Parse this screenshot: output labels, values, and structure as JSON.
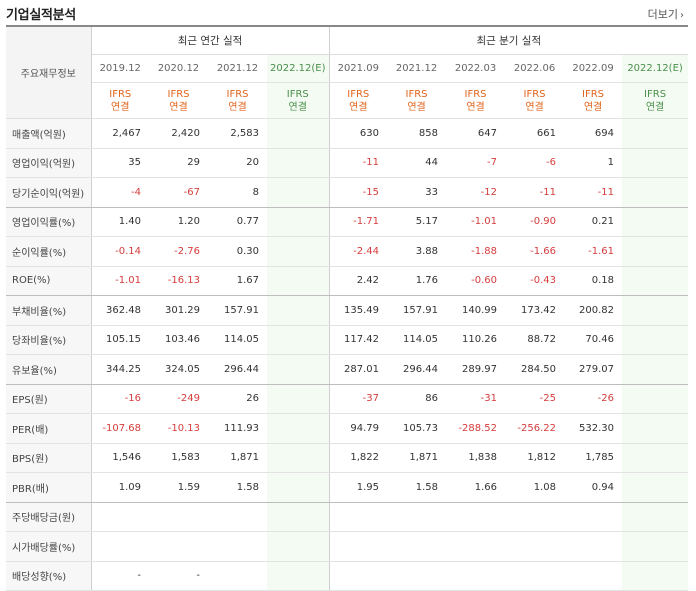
{
  "section_title": "기업실적분석",
  "more_label": "더보기",
  "more_icon": "chevron-right",
  "header": {
    "corner_label": "주요재무정보",
    "annual_label": "최근 연간 실적",
    "quarter_label": "최근 분기 실적",
    "annual_periods": [
      "2019.12",
      "2020.12",
      "2021.12",
      "2022.12(E)"
    ],
    "quarter_periods": [
      "2021.09",
      "2021.12",
      "2022.03",
      "2022.06",
      "2022.09",
      "2022.12(E)"
    ],
    "basis_top": "IFRS",
    "basis_bottom": "연결"
  },
  "colors": {
    "negative": "#d53c3c",
    "basis": "#e0631a",
    "estimate_bg": "#f3fbf3",
    "estimate_text": "#4a8f4a"
  },
  "rows": [
    {
      "label": "매출액(억원)",
      "annual": [
        "2,467",
        "2,420",
        "2,583",
        ""
      ],
      "quarter": [
        "630",
        "858",
        "647",
        "661",
        "694",
        ""
      ]
    },
    {
      "label": "영업이익(억원)",
      "annual": [
        "35",
        "29",
        "20",
        ""
      ],
      "quarter": [
        "-11",
        "44",
        "-7",
        "-6",
        "1",
        ""
      ]
    },
    {
      "label": "당기순이익(억원)",
      "annual": [
        "-4",
        "-67",
        "8",
        ""
      ],
      "quarter": [
        "-15",
        "33",
        "-12",
        "-11",
        "-11",
        ""
      ]
    },
    {
      "label": "영업이익률(%)",
      "annual": [
        "1.40",
        "1.20",
        "0.77",
        ""
      ],
      "quarter": [
        "-1.71",
        "5.17",
        "-1.01",
        "-0.90",
        "0.21",
        ""
      ]
    },
    {
      "label": "순이익률(%)",
      "annual": [
        "-0.14",
        "-2.76",
        "0.30",
        ""
      ],
      "quarter": [
        "-2.44",
        "3.88",
        "-1.88",
        "-1.66",
        "-1.61",
        ""
      ]
    },
    {
      "label": "ROE(%)",
      "annual": [
        "-1.01",
        "-16.13",
        "1.67",
        ""
      ],
      "quarter": [
        "2.42",
        "1.76",
        "-0.60",
        "-0.43",
        "0.18",
        ""
      ]
    },
    {
      "label": "부채비율(%)",
      "annual": [
        "362.48",
        "301.29",
        "157.91",
        ""
      ],
      "quarter": [
        "135.49",
        "157.91",
        "140.99",
        "173.42",
        "200.82",
        ""
      ]
    },
    {
      "label": "당좌비율(%)",
      "annual": [
        "105.15",
        "103.46",
        "114.05",
        ""
      ],
      "quarter": [
        "117.42",
        "114.05",
        "110.26",
        "88.72",
        "70.46",
        ""
      ]
    },
    {
      "label": "유보율(%)",
      "annual": [
        "344.25",
        "324.05",
        "296.44",
        ""
      ],
      "quarter": [
        "287.01",
        "296.44",
        "289.97",
        "284.50",
        "279.07",
        ""
      ]
    },
    {
      "label": "EPS(원)",
      "annual": [
        "-16",
        "-249",
        "26",
        ""
      ],
      "quarter": [
        "-37",
        "86",
        "-31",
        "-25",
        "-26",
        ""
      ]
    },
    {
      "label": "PER(배)",
      "annual": [
        "-107.68",
        "-10.13",
        "111.93",
        ""
      ],
      "quarter": [
        "94.79",
        "105.73",
        "-288.52",
        "-256.22",
        "532.30",
        ""
      ]
    },
    {
      "label": "BPS(원)",
      "annual": [
        "1,546",
        "1,583",
        "1,871",
        ""
      ],
      "quarter": [
        "1,822",
        "1,871",
        "1,838",
        "1,812",
        "1,785",
        ""
      ]
    },
    {
      "label": "PBR(배)",
      "annual": [
        "1.09",
        "1.59",
        "1.58",
        ""
      ],
      "quarter": [
        "1.95",
        "1.58",
        "1.66",
        "1.08",
        "0.94",
        ""
      ]
    },
    {
      "label": "주당배당금(원)",
      "annual": [
        "",
        "",
        "",
        ""
      ],
      "quarter": [
        "",
        "",
        "",
        "",
        "",
        ""
      ]
    },
    {
      "label": "시가배당률(%)",
      "annual": [
        "",
        "",
        "",
        ""
      ],
      "quarter": [
        "",
        "",
        "",
        "",
        "",
        ""
      ]
    },
    {
      "label": "배당성향(%)",
      "annual": [
        "-",
        "-",
        "",
        ""
      ],
      "quarter": [
        "",
        "",
        "",
        "",
        "",
        ""
      ]
    }
  ],
  "group_end_rows": [
    2,
    5,
    8,
    12
  ]
}
